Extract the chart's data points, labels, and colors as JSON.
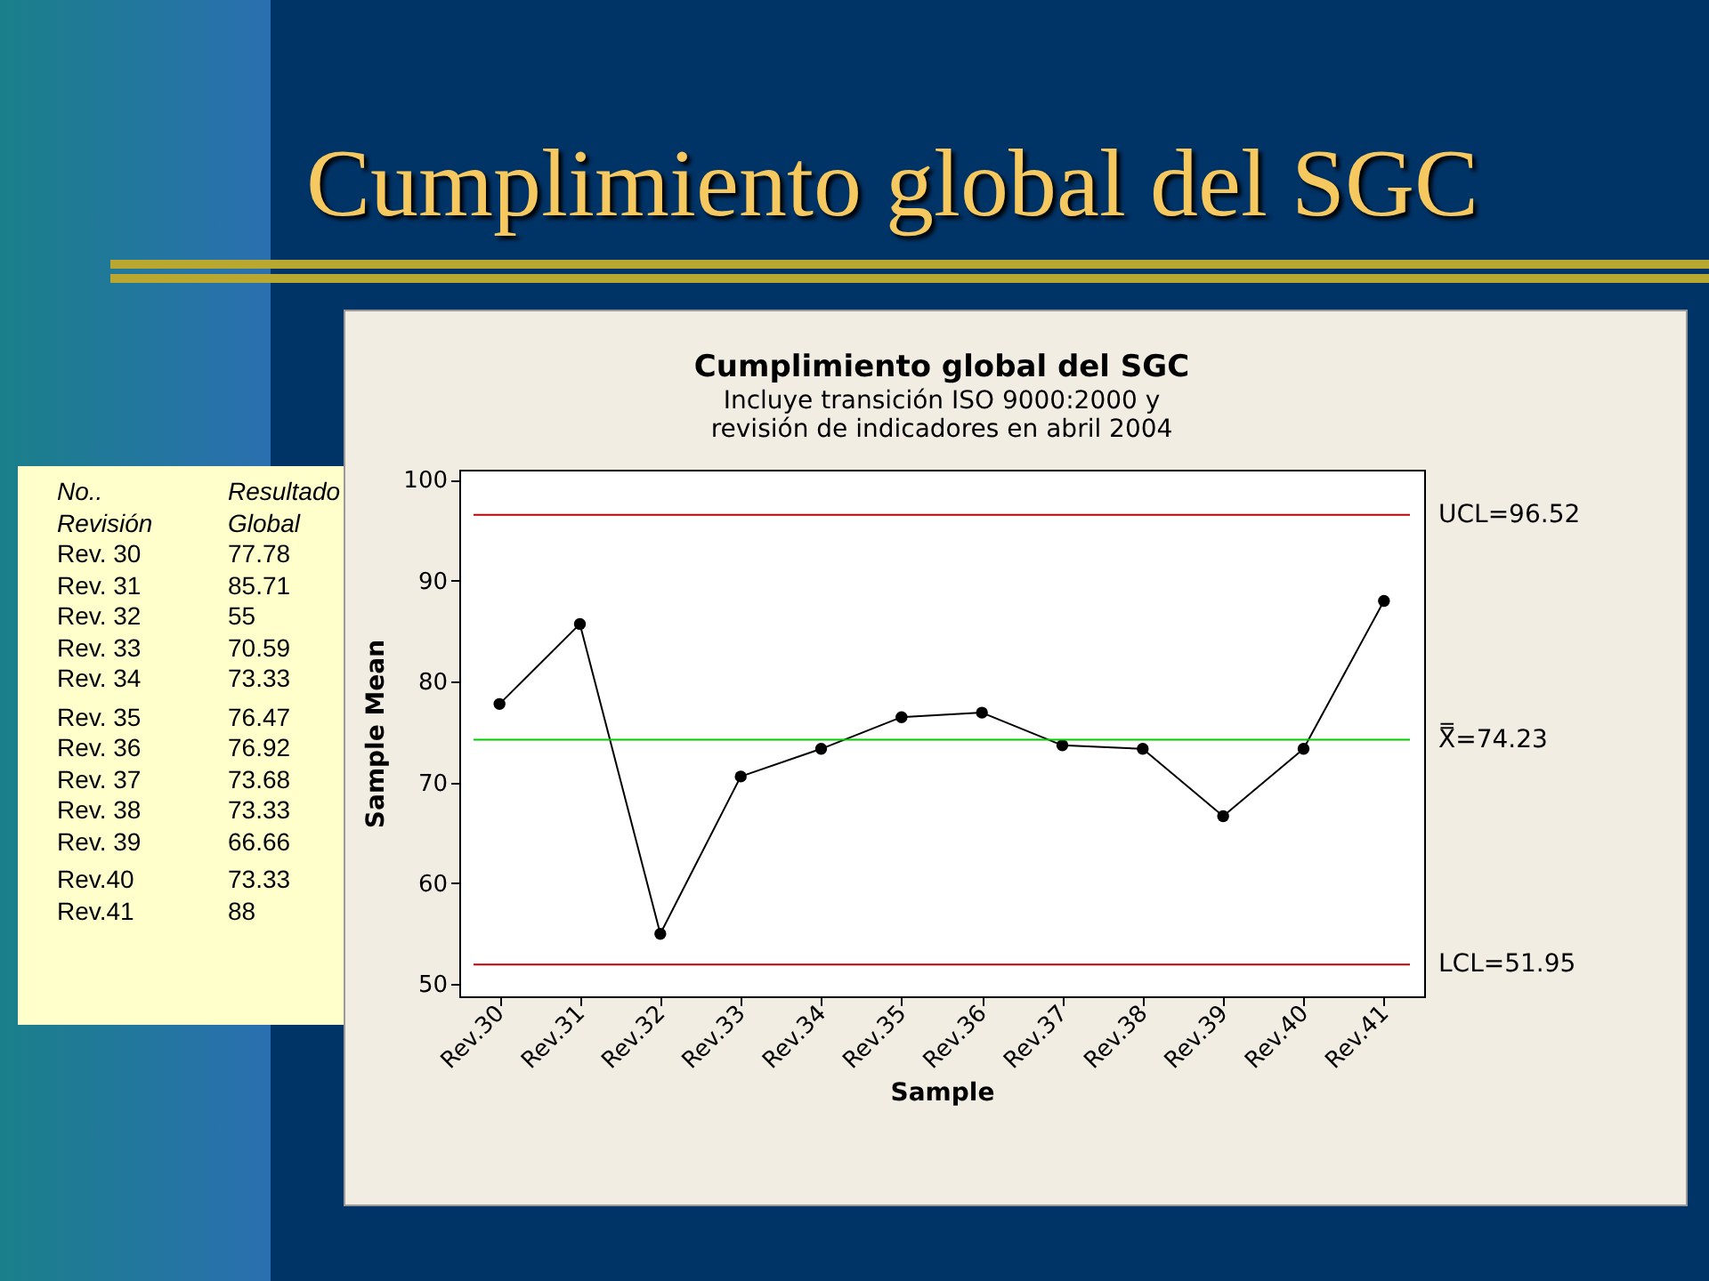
{
  "chart_data": [
    {
      "type": "other",
      "title": "Cumplimiento global del SGC",
      "annotations": [
        "No..",
        "Resultado",
        "Revisión",
        "Global",
        "Rev. 30",
        "77.78",
        "Rev. 31",
        "85.71",
        "Rev. 32",
        "55",
        "Rev. 33",
        "70.59",
        "Rev. 34",
        "73.33",
        "Rev. 35",
        "76.47",
        "Rev. 36",
        "76.92",
        "Rev. 37",
        "73.68",
        "Rev. 38",
        "73.33",
        "Rev. 39",
        "66.66",
        "Rev.40",
        "73.33",
        "Rev.41",
        "88"
      ]
    },
    {
      "type": "line",
      "title": "Cumplimiento global del SGC",
      "subtitle": "Incluye transición ISO 9000:2000 y\nrevisión de indicadores en abril 2004",
      "xlabel": "Sample",
      "ylabel": "Sample Mean",
      "categories": [
        "Rev.30",
        "Rev.31",
        "Rev.32",
        "Rev.33",
        "Rev.34",
        "Rev.35",
        "Rev.36",
        "Rev.37",
        "Rev.38",
        "Rev.39",
        "Rev.40",
        "Rev.41"
      ],
      "series": [
        {
          "color": "#000000",
          "values": [
            77.78,
            85.71,
            55,
            70.59,
            73.33,
            76.47,
            76.92,
            73.68,
            73.33,
            66.66,
            73.33,
            88
          ]
        }
      ],
      "ylim": [
        48.8,
        101
      ],
      "yticks": [
        50,
        60,
        70,
        80,
        90,
        100
      ],
      "marker": "circle",
      "line_style": "solid",
      "grid": false,
      "ref_lines": [
        {
          "axis": "y",
          "value": 96.52,
          "label": "UCL=96.52",
          "color": "#c00000"
        },
        {
          "axis": "y",
          "value": 74.23,
          "label": "X̿=74.23",
          "color": "#00cc00"
        },
        {
          "axis": "y",
          "value": 51.95,
          "label": "LCL=51.95",
          "color": "#c00000"
        }
      ]
    }
  ]
}
